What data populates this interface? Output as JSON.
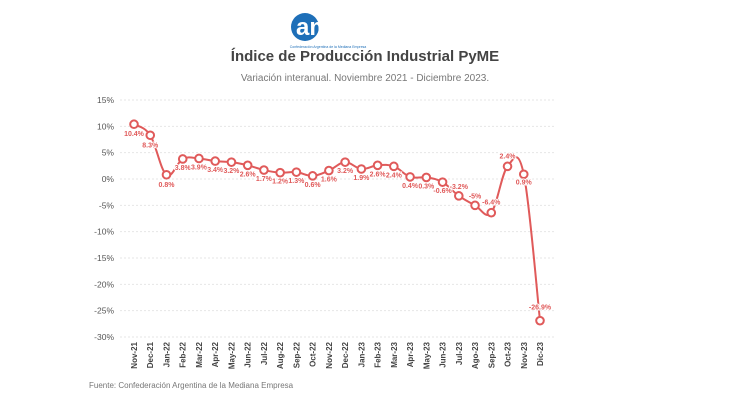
{
  "logo": {
    "text": "ame",
    "caption": "Confederación Argentina de la Mediana Empresa",
    "color": "#1e6fb8"
  },
  "title": "Índice de Producción Industrial PyME",
  "subtitle": "Variación interanual. Noviembre 2021 - Diciembre 2023.",
  "source": "Fuente: Confederación Argentina de la Mediana Empresa",
  "chart_data": {
    "type": "line",
    "x": [
      "Nov-21",
      "Dec-21",
      "Jan-22",
      "Feb-22",
      "Mar-22",
      "Apr-22",
      "May-22",
      "Jun-22",
      "Jul-22",
      "Aug-22",
      "Sep-22",
      "Oct-22",
      "Nov-22",
      "Dec-22",
      "Jan-23",
      "Feb-23",
      "Mar-23",
      "Apr-23",
      "May-23",
      "Jun-23",
      "Jul-23",
      "Ago-23",
      "Sep-23",
      "Oct-23",
      "Nov-23",
      "Dic-23"
    ],
    "values": [
      10.4,
      8.3,
      0.8,
      3.8,
      3.9,
      3.4,
      3.2,
      2.6,
      1.7,
      1.2,
      1.3,
      0.6,
      1.6,
      3.2,
      1.9,
      2.6,
      2.4,
      0.4,
      0.3,
      -0.6,
      -3.2,
      -5,
      -6.4,
      2.4,
      0.9,
      -26.9
    ],
    "data_labels": [
      "10.4%",
      "8.3%",
      "0.8%",
      "3.8%",
      "3.9%",
      "3.4%",
      "3.2%",
      "2.6%",
      "1.7%",
      "1.2%",
      "1.3%",
      "0.6%",
      "1.6%",
      "3.2%",
      "1.9%",
      "2.6%",
      "2.4%",
      "0.4%",
      "0.3%",
      "-0.6%",
      "-3.2%",
      "-5%",
      "-6.4%",
      "2.4%",
      "0.9%",
      "-26.9%"
    ],
    "ylim": [
      -30,
      15
    ],
    "yticks": [
      15,
      10,
      5,
      0,
      -5,
      -10,
      -15,
      -20,
      -25,
      -30
    ],
    "ytick_labels": [
      "15%",
      "10%",
      "5%",
      "0%",
      "-5%",
      "-10%",
      "-15%",
      "-20%",
      "-25%",
      "-30%"
    ],
    "grid": true,
    "color": "#e05a5a"
  }
}
